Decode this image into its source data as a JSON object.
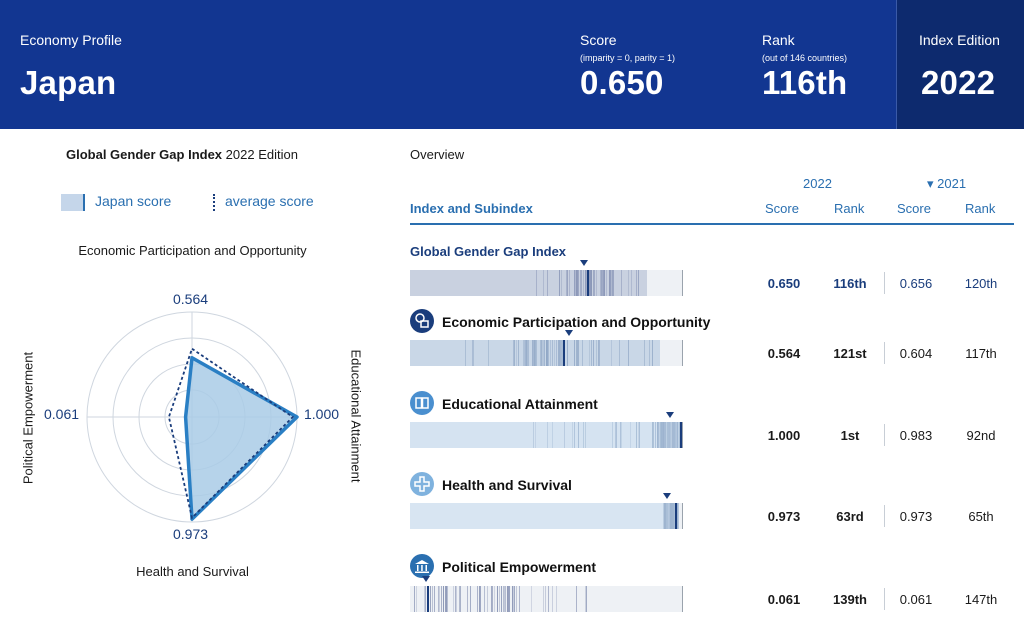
{
  "header": {
    "profile_label": "Economy Profile",
    "country": "Japan",
    "score_label": "Score",
    "score_note": "(imparity = 0, parity = 1)",
    "score_value": "0.650",
    "rank_label": "Rank",
    "rank_note": "(out of 146 countries)",
    "rank_value": "116th",
    "edition_label": "Index Edition",
    "edition_value": "2022"
  },
  "left": {
    "title_bold": "Global Gender Gap Index",
    "title_rest": " 2022 Edition",
    "legend_japan": "Japan score",
    "legend_avg": "average score",
    "axis_top": "Economic Participation and Opportunity",
    "axis_right": "Educational Attainment",
    "axis_bottom": "Health and Survival",
    "axis_left": "Political Empowerment",
    "val_top": "0.564",
    "val_right": "1.000",
    "val_bottom": "0.973",
    "val_left": "0.061"
  },
  "radar": {
    "japan": {
      "economic": 0.564,
      "education": 1.0,
      "health": 0.973,
      "political": 0.061
    },
    "average": {
      "economic": 0.65,
      "education": 0.96,
      "health": 0.96,
      "political": 0.22
    },
    "colors": {
      "fill": "#a9cbe6",
      "stroke": "#2a7fc4",
      "avg": "#1a3d7c"
    }
  },
  "overview": {
    "title": "Overview",
    "year_2022": "2022",
    "year_2021": "▾ 2021",
    "col_index": "Index and Subindex",
    "col_score": "Score",
    "col_rank": "Rank",
    "rows": [
      {
        "name": "Global Gender Gap Index",
        "score_2022": "0.650",
        "rank_2022": "116th",
        "score_2021": "0.656",
        "rank_2021": "120th"
      },
      {
        "name": "Economic Participation and Opportunity",
        "score_2022": "0.564",
        "rank_2022": "121st",
        "score_2021": "0.604",
        "rank_2021": "117th"
      },
      {
        "name": "Educational Attainment",
        "score_2022": "1.000",
        "rank_2022": "1st",
        "score_2021": "0.983",
        "rank_2021": "92nd"
      },
      {
        "name": "Health and Survival",
        "score_2022": "0.973",
        "rank_2022": "63rd",
        "score_2021": "0.973",
        "rank_2021": "65th"
      },
      {
        "name": "Political Empowerment",
        "score_2022": "0.061",
        "rank_2022": "139th",
        "score_2021": "0.061",
        "rank_2021": "147th"
      }
    ]
  },
  "colors": {
    "header": "#123691",
    "accent": "#2a6fb0",
    "dark": "#1a3d7c"
  }
}
